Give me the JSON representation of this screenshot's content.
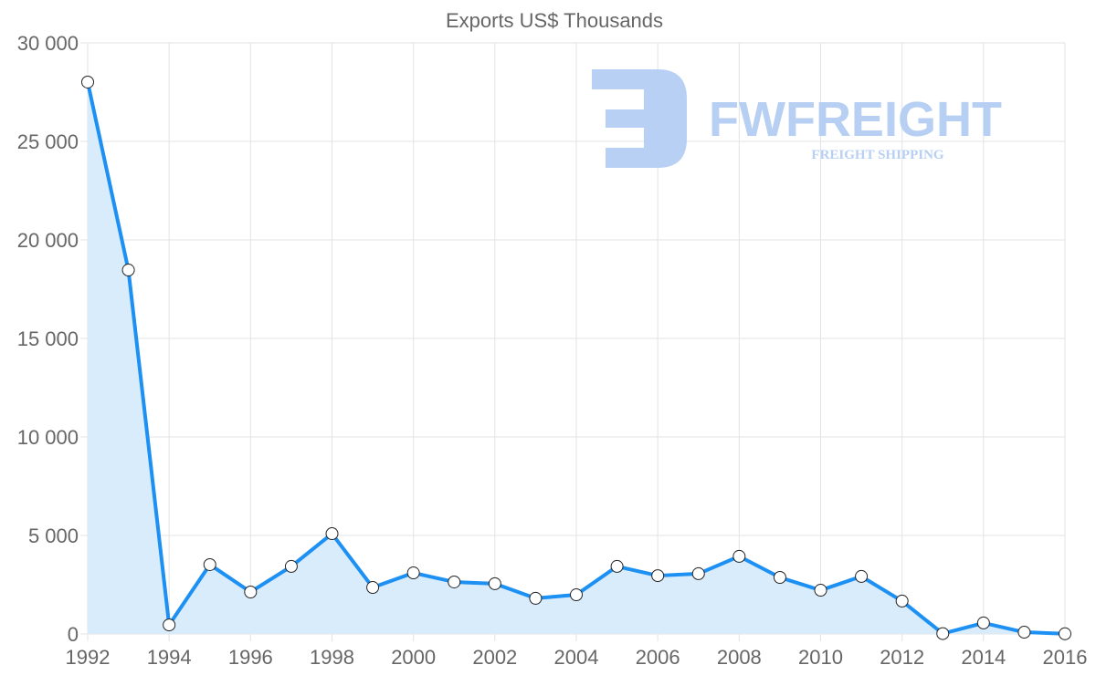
{
  "chart_data": {
    "type": "line",
    "title": "Exports US$ Thousands",
    "xlabel": "",
    "ylabel": "",
    "x": [
      1992,
      1993,
      1994,
      1995,
      1996,
      1997,
      1998,
      1999,
      2000,
      2001,
      2002,
      2003,
      2004,
      2005,
      2006,
      2007,
      2008,
      2009,
      2010,
      2011,
      2012,
      2013,
      2014,
      2015,
      2016
    ],
    "series": [
      {
        "name": "Exports US$ Thousands",
        "values": [
          28010,
          18470,
          460,
          3520,
          2130,
          3430,
          5090,
          2360,
          3100,
          2640,
          2550,
          1810,
          1990,
          3430,
          2960,
          3060,
          3940,
          2870,
          2220,
          2920,
          1670,
          20,
          560,
          90,
          10
        ]
      }
    ],
    "ylim": [
      0,
      30000
    ],
    "xlim": [
      1992,
      2016
    ],
    "y_ticks": [
      {
        "v": 0,
        "label": "0"
      },
      {
        "v": 5000,
        "label": "5 000"
      },
      {
        "v": 10000,
        "label": "10 000"
      },
      {
        "v": 15000,
        "label": "15 000"
      },
      {
        "v": 20000,
        "label": "20 000"
      },
      {
        "v": 25000,
        "label": "25 000"
      },
      {
        "v": 30000,
        "label": "30 000"
      }
    ],
    "x_ticks": [
      1992,
      1994,
      1996,
      1998,
      2000,
      2002,
      2004,
      2006,
      2008,
      2010,
      2012,
      2014,
      2016
    ],
    "grid": true,
    "legend": "none",
    "colors": {
      "line": "#1c90f3",
      "fill": "#d9ecfc",
      "grid": "#e3e3e3",
      "point_fill": "#ffffff"
    }
  },
  "watermark": {
    "brand": "FWFREIGHT",
    "tagline": "FREIGHT SHIPPING",
    "color": "#b3cdf3"
  }
}
